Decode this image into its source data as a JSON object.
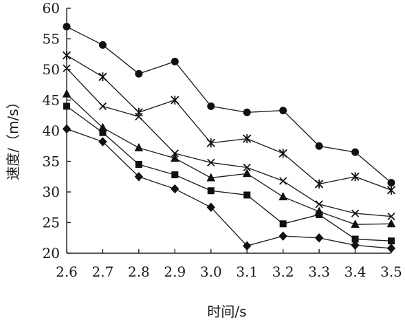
{
  "chart_data": {
    "type": "line",
    "xlabel": "时间/s",
    "ylabel": "速度/（m/s）",
    "x": [
      2.6,
      2.7,
      2.8,
      2.9,
      3.0,
      3.1,
      3.2,
      3.3,
      3.4,
      3.5
    ],
    "x_tick_labels": [
      "2.6",
      "2.7",
      "2.8",
      "2.9",
      "3.0",
      "3.1",
      "3.2",
      "3.3",
      "3.4",
      "3.5"
    ],
    "y_ticks": [
      20,
      25,
      30,
      35,
      40,
      45,
      50,
      55,
      60
    ],
    "ylim": [
      20,
      60
    ],
    "xlim": [
      2.6,
      3.5
    ],
    "grid": false,
    "legend": "none",
    "series": [
      {
        "marker": "circle",
        "values": [
          57.0,
          54.0,
          49.3,
          51.3,
          44.0,
          43.0,
          43.3,
          37.5,
          36.5,
          31.5
        ]
      },
      {
        "marker": "asterisk",
        "values": [
          52.3,
          48.8,
          43.0,
          45.0,
          38.0,
          38.7,
          36.3,
          31.3,
          32.5,
          30.3
        ]
      },
      {
        "marker": "x",
        "values": [
          50.2,
          44.0,
          42.3,
          36.3,
          34.8,
          34.0,
          31.8,
          28.0,
          26.5,
          26.0
        ]
      },
      {
        "marker": "triangle",
        "values": [
          46.0,
          40.5,
          37.2,
          35.5,
          32.3,
          33.0,
          29.2,
          26.8,
          24.7,
          24.8
        ]
      },
      {
        "marker": "square",
        "values": [
          44.0,
          39.7,
          34.5,
          32.8,
          30.2,
          29.5,
          24.8,
          26.3,
          22.3,
          22.0
        ]
      },
      {
        "marker": "diamond",
        "values": [
          40.3,
          38.2,
          32.5,
          30.5,
          27.5,
          21.2,
          22.8,
          22.5,
          21.3,
          20.8
        ]
      }
    ]
  }
}
